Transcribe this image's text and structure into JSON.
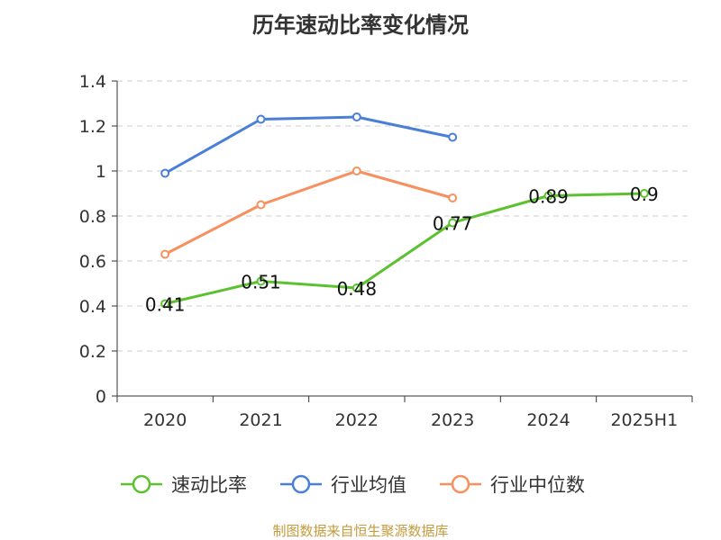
{
  "chart_data": {
    "type": "line",
    "title": "历年速动比率变化情况",
    "categories": [
      "2020",
      "2021",
      "2022",
      "2023",
      "2024",
      "2025H1"
    ],
    "ylim": [
      0,
      1.4
    ],
    "yticks": [
      0,
      0.2,
      0.4,
      0.6,
      0.8,
      1,
      1.2,
      1.4
    ],
    "grid": true,
    "legend_position": "bottom",
    "series": [
      {
        "name": "速动比率",
        "color": "#5cc12e",
        "values": [
          0.41,
          0.51,
          0.48,
          0.77,
          0.89,
          0.9
        ],
        "labels": [
          "0.41",
          "0.51",
          "0.48",
          "0.77",
          "0.89",
          "0.9"
        ]
      },
      {
        "name": "行业均值",
        "color": "#4a7fd8",
        "values": [
          0.99,
          1.23,
          1.24,
          1.15,
          null,
          null
        ]
      },
      {
        "name": "行业中位数",
        "color": "#f7905e",
        "values": [
          0.63,
          0.85,
          1.0,
          0.88,
          null,
          null
        ]
      }
    ]
  },
  "source": "制图数据来自恒生聚源数据库"
}
